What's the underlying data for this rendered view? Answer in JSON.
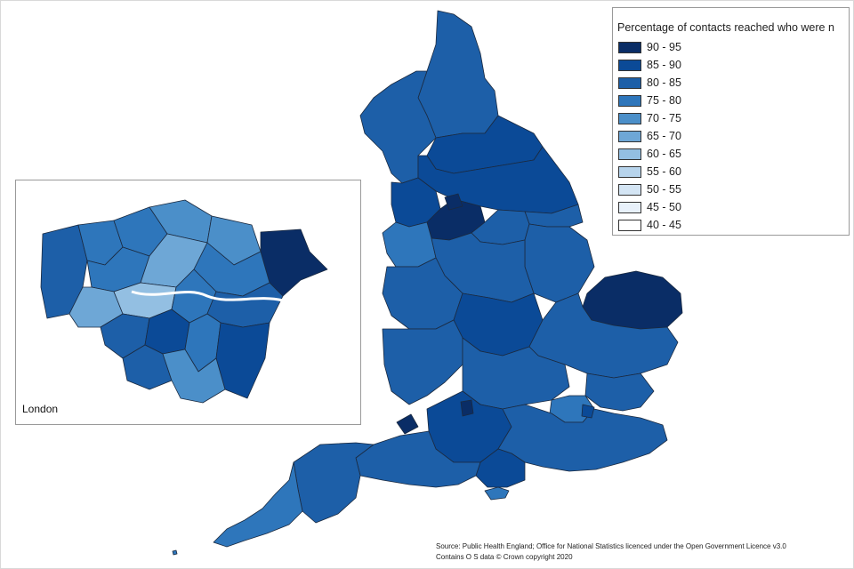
{
  "legend": {
    "title": "Percentage of contacts reached who were n",
    "items": [
      {
        "label": "90 - 95",
        "color": "#0a2d66"
      },
      {
        "label": "85 - 90",
        "color": "#0b4a97"
      },
      {
        "label": "80 - 85",
        "color": "#1d5fa8"
      },
      {
        "label": "75 - 80",
        "color": "#2e76bb"
      },
      {
        "label": "70 - 75",
        "color": "#4b8fc9"
      },
      {
        "label": "65 - 70",
        "color": "#6ea7d6"
      },
      {
        "label": "60 - 65",
        "color": "#93bfe2"
      },
      {
        "label": "55 - 60",
        "color": "#b7d4ec"
      },
      {
        "label": "50 - 55",
        "color": "#d4e5f4"
      },
      {
        "label": "45 - 50",
        "color": "#e8f1fa"
      },
      {
        "label": "40 - 45",
        "color": "#ffffff"
      }
    ]
  },
  "inset": {
    "label": "London"
  },
  "source": {
    "line1": "Source: Public Health England; Office for National Statistics licenced under the Open Government Licence v3.0",
    "line2": "Contains O S data © Crown copyright 2020"
  }
}
